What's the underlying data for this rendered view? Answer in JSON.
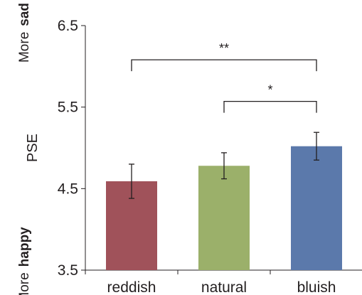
{
  "chart_data": {
    "type": "bar",
    "categories": [
      "reddish",
      "natural",
      "bluish"
    ],
    "values": [
      4.59,
      4.78,
      5.02
    ],
    "errors": [
      0.21,
      0.16,
      0.17
    ],
    "colors": [
      "#a0525a",
      "#9bb06a",
      "#5b79ab"
    ],
    "ylabel": "PSE",
    "ylim": [
      3.5,
      6.5
    ],
    "yticks": [
      "3.5",
      "4.5",
      "5.5",
      "6.5"
    ],
    "y_top_annotation": {
      "line1": "More",
      "line2": "sad"
    },
    "y_bottom_annotation": {
      "line1": "More",
      "line2": "happy"
    },
    "significance": [
      {
        "from": "reddish",
        "to": "bluish",
        "label": "**",
        "level": 6.08
      },
      {
        "from": "natural",
        "to": "bluish",
        "label": "*",
        "level": 5.57
      }
    ]
  }
}
